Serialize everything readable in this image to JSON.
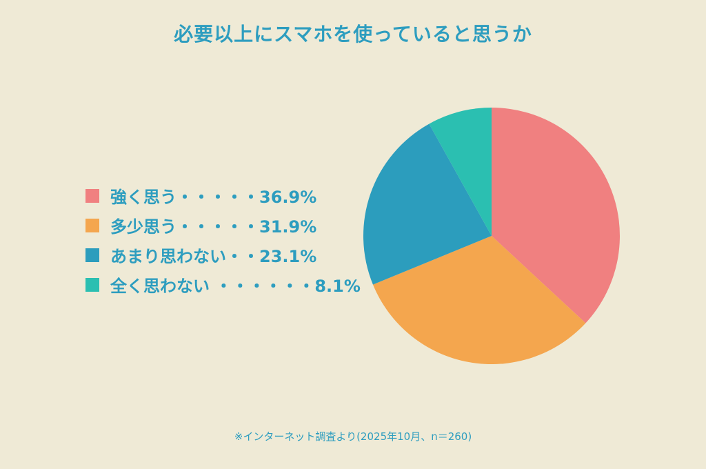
{
  "title": "必要以上にスマホを使っていると思うか",
  "legend": [
    {
      "label": "強く思う・・・・・36.9%",
      "color": "#f08080"
    },
    {
      "label": "多少思う・・・・・31.9%",
      "color": "#f4a64e"
    },
    {
      "label": "あまり思わない・・23.1%",
      "color": "#2c9dbd"
    },
    {
      "label": "全く思わない ・・・・・・8.1%",
      "color": "#2bbfb1"
    }
  ],
  "note": "※インターネット調査より(2025年10月、n＝260)",
  "chart_data": {
    "type": "pie",
    "title": "必要以上にスマホを使っていると思うか",
    "categories": [
      "強く思う",
      "多少思う",
      "あまり思わない",
      "全く思わない"
    ],
    "values": [
      36.9,
      31.9,
      23.1,
      8.1
    ],
    "colors": [
      "#f08080",
      "#f4a64e",
      "#2c9dbd",
      "#2bbfb1"
    ],
    "start_angle": "12 o'clock, clockwise",
    "legend_position": "left",
    "annotation": "※インターネット調査より(2025年10月、n＝260)"
  }
}
